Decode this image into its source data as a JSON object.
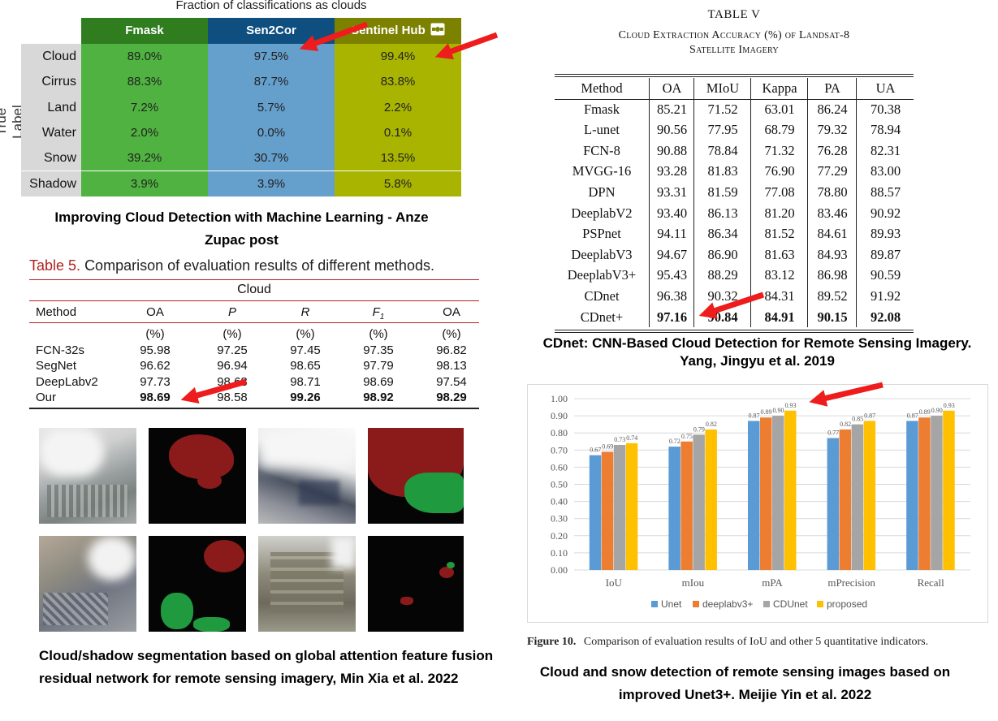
{
  "panel1": {
    "title": "Fraction of classifications as clouds",
    "y_label": "True Label",
    "columns": [
      "Fmask",
      "Sen2Cor",
      "Sentinel Hub"
    ],
    "rows": [
      {
        "label": "Cloud",
        "values": [
          "89.0%",
          "97.5%",
          "99.4%"
        ]
      },
      {
        "label": "Cirrus",
        "values": [
          "88.3%",
          "87.7%",
          "83.8%"
        ]
      },
      {
        "label": "Land",
        "values": [
          "7.2%",
          "5.7%",
          "2.2%"
        ]
      },
      {
        "label": "Water",
        "values": [
          "2.0%",
          "0.0%",
          "0.1%"
        ]
      },
      {
        "label": "Snow",
        "values": [
          "39.2%",
          "30.7%",
          "13.5%"
        ]
      },
      {
        "label": "Shadow",
        "values": [
          "3.9%",
          "3.9%",
          "5.8%"
        ]
      }
    ],
    "colors": {
      "fmask": "#50b240",
      "sen2cor": "#659fcc",
      "sentinel_hub": "#a8b400",
      "header_fmask": "#2f7d1e",
      "header_sen2cor": "#0f4f7f",
      "header_hub": "#7c8200"
    },
    "caption": "Improving Cloud Detection with Machine Learning - Anze Zupac post"
  },
  "panel2": {
    "title_label": "Table 5.",
    "title_text": "Comparison of evaluation results of different methods.",
    "group": "Cloud",
    "headers": [
      "Method",
      "OA",
      "P",
      "R",
      "F",
      "OA"
    ],
    "f_sub": "1",
    "units": [
      "(%)",
      "(%)",
      "(%)",
      "(%)",
      "(%)"
    ],
    "rows": [
      {
        "method": "FCN-32s",
        "values": [
          "95.98",
          "97.25",
          "97.45",
          "97.35",
          "96.82"
        ]
      },
      {
        "method": "SegNet",
        "values": [
          "96.62",
          "96.94",
          "98.65",
          "97.79",
          "98.13"
        ]
      },
      {
        "method": "DeepLabv2",
        "values": [
          "97.73",
          "98.68",
          "98.71",
          "98.69",
          "97.54"
        ]
      },
      {
        "method": "Our",
        "values": [
          "98.69",
          "98.58",
          "99.26",
          "98.92",
          "98.29"
        ]
      }
    ],
    "caption": "Cloud/shadow segmentation based on global attention feature fusion residual network for remote sensing imagery, Min Xia et al. 2022"
  },
  "panel3": {
    "table_no": "TABLE V",
    "subtitle_1": "Cloud Extraction Accuracy (%) of Landsat-8",
    "subtitle_2": "Satellite Imagery",
    "headers": [
      "Method",
      "OA",
      "MIoU",
      "Kappa",
      "PA",
      "UA"
    ],
    "rows": [
      {
        "method": "Fmask",
        "values": [
          "85.21",
          "71.52",
          "63.01",
          "86.24",
          "70.38"
        ]
      },
      {
        "method": "L-unet",
        "values": [
          "90.56",
          "77.95",
          "68.79",
          "79.32",
          "78.94"
        ]
      },
      {
        "method": "FCN-8",
        "values": [
          "90.88",
          "78.84",
          "71.32",
          "76.28",
          "82.31"
        ]
      },
      {
        "method": "MVGG-16",
        "values": [
          "93.28",
          "81.83",
          "76.90",
          "77.29",
          "83.00"
        ]
      },
      {
        "method": "DPN",
        "values": [
          "93.31",
          "81.59",
          "77.08",
          "78.80",
          "88.57"
        ]
      },
      {
        "method": "DeeplabV2",
        "values": [
          "93.40",
          "86.13",
          "81.20",
          "83.46",
          "90.92"
        ]
      },
      {
        "method": "PSPnet",
        "values": [
          "94.11",
          "86.34",
          "81.52",
          "84.61",
          "89.93"
        ]
      },
      {
        "method": "DeeplabV3",
        "values": [
          "94.67",
          "86.90",
          "81.63",
          "84.93",
          "89.87"
        ]
      },
      {
        "method": "DeeplabV3+",
        "values": [
          "95.43",
          "88.29",
          "83.12",
          "86.98",
          "90.59"
        ]
      },
      {
        "method": "CDnet",
        "values": [
          "96.38",
          "90.32",
          "84.31",
          "89.52",
          "91.92"
        ]
      },
      {
        "method": "CDnet+",
        "values": [
          "97.16",
          "90.84",
          "84.91",
          "90.15",
          "92.08"
        ]
      }
    ],
    "caption": "CDnet: CNN-Based Cloud Detection for Remote Sensing Imagery. Yang, Jingyu et al. 2019"
  },
  "chart_data": {
    "type": "bar",
    "categories": [
      "IoU",
      "mIou",
      "mPA",
      "mPrecision",
      "Recall"
    ],
    "series": [
      {
        "name": "Unet",
        "color": "#5b9bd5",
        "values": [
          0.67,
          0.72,
          0.87,
          0.77,
          0.87
        ]
      },
      {
        "name": "deeplabv3+",
        "color": "#ed7d31",
        "values": [
          0.69,
          0.75,
          0.89,
          0.82,
          0.89
        ]
      },
      {
        "name": "CDUnet",
        "color": "#a5a5a5",
        "values": [
          0.73,
          0.79,
          0.9,
          0.85,
          0.9
        ]
      },
      {
        "name": "proposed",
        "color": "#ffc000",
        "values": [
          0.74,
          0.82,
          0.93,
          0.87,
          0.93
        ]
      }
    ],
    "ylim": [
      0,
      1.0
    ],
    "yticks": [
      "0.00",
      "0.10",
      "0.20",
      "0.30",
      "0.40",
      "0.50",
      "0.60",
      "0.70",
      "0.80",
      "0.90",
      "1.00"
    ],
    "grid": true,
    "legend": "bottom"
  },
  "panel4": {
    "figure_label": "Figure 10.",
    "figure_text": "Comparison of evaluation results of IoU and other 5 quantitative indicators.",
    "caption": "Cloud and snow detection of remote sensing images based on improved Unet3+. Meijie Yin et al. 2022"
  },
  "arrow_color": "#ee1c1c"
}
